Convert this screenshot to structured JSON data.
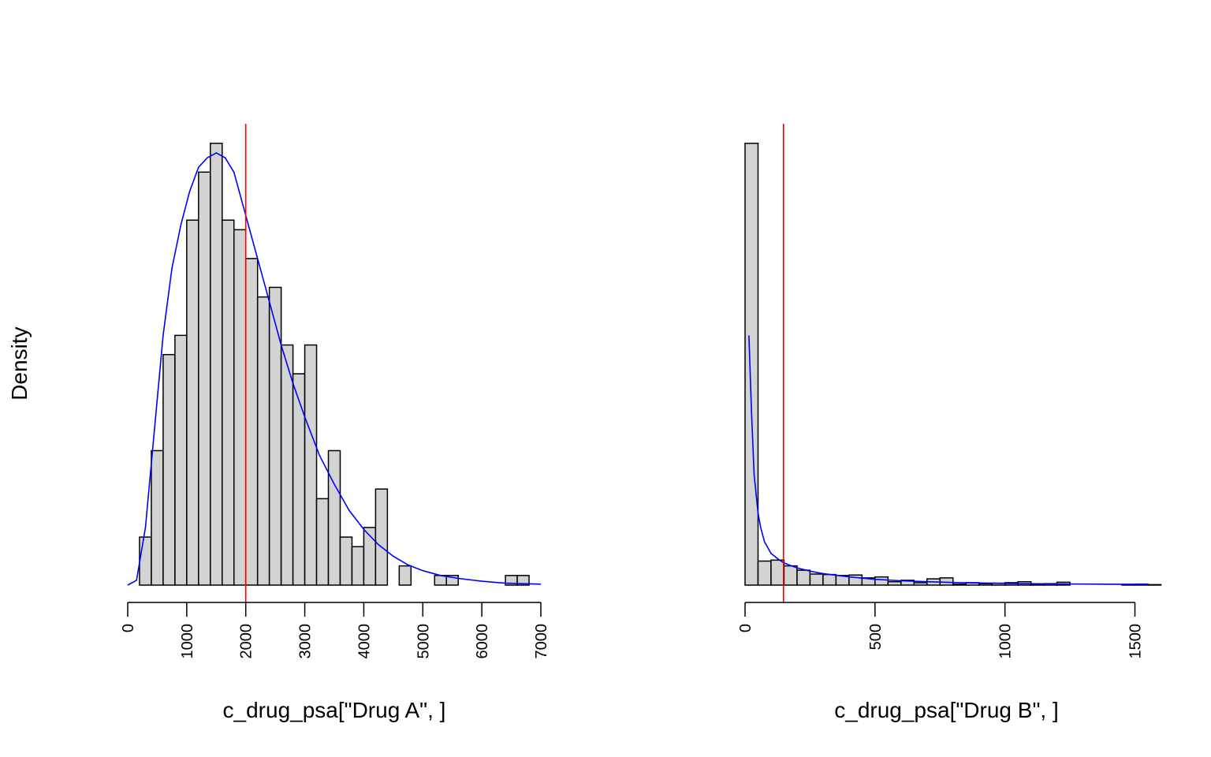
{
  "y_axis_label": "Density",
  "chart_data": [
    {
      "type": "bar",
      "subtype": "histogram",
      "xlabel": "c_drug_psa[\"Drug A\", ]",
      "ylabel": "Density",
      "bin_width": 200,
      "bin_start": 200,
      "xlim": [
        0,
        7000
      ],
      "ylim": [
        0,
        0.0005
      ],
      "x_ticks": [
        "0",
        "1000",
        "2000",
        "3000",
        "4000",
        "5000",
        "6000",
        "7000"
      ],
      "x_tick_values": [
        0,
        1000,
        2000,
        3000,
        4000,
        5000,
        6000,
        7000
      ],
      "densities": [
        5e-05,
        0.00014,
        0.00024,
        0.00026,
        0.00038,
        0.00043,
        0.00046,
        0.00038,
        0.00037,
        0.00034,
        0.0003,
        0.00031,
        0.00025,
        0.00022,
        0.00025,
        9e-05,
        0.00014,
        5e-05,
        4e-05,
        6e-05,
        0.0001,
        0,
        2e-05,
        0,
        0,
        1e-05,
        1e-05,
        0,
        0,
        0,
        0,
        1e-05,
        1e-05
      ],
      "vline": {
        "x": 2000,
        "color": "#ff0000"
      },
      "density_curve": {
        "color": "#0000ff",
        "x": [
          0,
          150,
          300,
          450,
          600,
          750,
          900,
          1050,
          1200,
          1350,
          1500,
          1650,
          1800,
          2000,
          2200,
          2400,
          2600,
          2800,
          3000,
          3250,
          3500,
          3750,
          4000,
          4250,
          4500,
          4750,
          5000,
          5300,
          5600,
          6000,
          6400,
          7000
        ],
        "y": [
          0,
          5e-06,
          6e-05,
          0.00016,
          0.00026,
          0.00033,
          0.000375,
          0.00041,
          0.000435,
          0.000445,
          0.00045,
          0.000445,
          0.00043,
          0.000385,
          0.00034,
          0.000295,
          0.00025,
          0.00021,
          0.000175,
          0.000135,
          0.000105,
          7.8e-05,
          5.8e-05,
          4.2e-05,
          3e-05,
          2.1e-05,
          1.5e-05,
          1e-05,
          7e-06,
          4e-06,
          2e-06,
          1e-06
        ]
      }
    },
    {
      "type": "bar",
      "subtype": "histogram",
      "xlabel": "c_drug_psa[\"Drug B\", ]",
      "ylabel": "Density",
      "bin_width": 50,
      "bin_start": 0,
      "xlim": [
        0,
        1550
      ],
      "ylim": [
        0,
        0.01
      ],
      "x_ticks": [
        "0",
        "500",
        "1000",
        "1500"
      ],
      "x_tick_values": [
        0,
        500,
        1000,
        1500
      ],
      "densities": [
        0.0092,
        0.0005,
        0.00052,
        0.0004,
        0.00031,
        0.00023,
        0.00022,
        0.0002,
        0.00021,
        0.00015,
        0.00017,
        7e-05,
        0.0001,
        5e-05,
        0.00013,
        0.00015,
        2e-05,
        5e-05,
        3e-05,
        4e-05,
        5e-05,
        7e-05,
        2e-05,
        3e-05,
        6e-05,
        0,
        0,
        0,
        0,
        1.5e-05,
        2e-05,
        1e-05
      ],
      "vline": {
        "x": 148,
        "color": "#ff0000"
      },
      "density_curve": {
        "color": "#0000ff",
        "x": [
          15,
          25,
          35,
          50,
          60,
          75,
          100,
          125,
          150,
          200,
          250,
          300,
          400,
          500,
          600,
          700,
          800,
          900,
          1000,
          1200,
          1400,
          1550
        ],
        "y": [
          0.0052,
          0.0036,
          0.0023,
          0.0015,
          0.0012,
          0.0009,
          0.00066,
          0.00055,
          0.00046,
          0.00036,
          0.00029,
          0.00024,
          0.00017,
          0.00012,
          9e-05,
          7e-05,
          5.5e-05,
          4.5e-05,
          3.5e-05,
          2.5e-05,
          1.8e-05,
          1.4e-05
        ]
      }
    }
  ]
}
